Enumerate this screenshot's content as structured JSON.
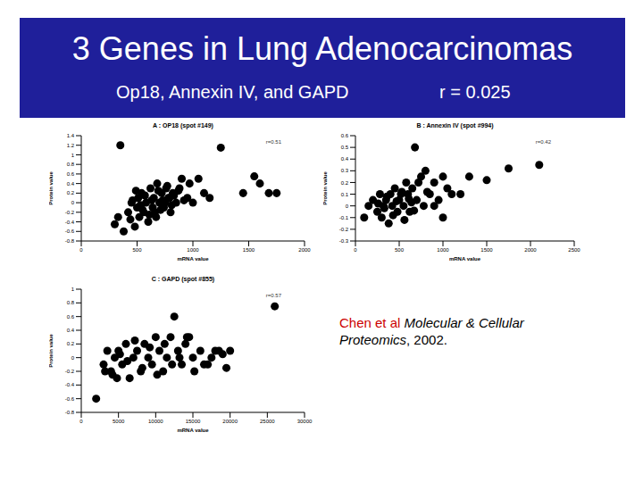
{
  "slide": {
    "title": "3 Genes in Lung Adenocarcinomas",
    "subtitle": "Op18, Annexin IV, and GAPD",
    "r_overall": "r = 0.025",
    "citation": {
      "author": "Chen et al",
      "journal": "Molecular & Cellular Proteomics",
      "rest": ", 2002."
    }
  },
  "chart_data": [
    {
      "type": "scatter",
      "title": "A : OP18 (spot #149)",
      "xlabel": "mRNA value",
      "ylabel": "Protein value",
      "annotation": "r=0.51",
      "color": "#000000",
      "marker": "circle",
      "grid": false,
      "xlim": [
        0,
        2000
      ],
      "xticks": [
        0,
        500,
        1000,
        1500,
        2000
      ],
      "ylim": [
        -0.8,
        1.4
      ],
      "yticks": [
        -0.8,
        -0.6,
        -0.4,
        -0.2,
        0,
        0.2,
        0.4,
        0.6,
        0.8,
        1,
        1.2,
        1.4
      ],
      "x": [
        350,
        330,
        420,
        450,
        480,
        500,
        510,
        520,
        540,
        560,
        580,
        600,
        620,
        640,
        650,
        660,
        680,
        700,
        720,
        740,
        760,
        780,
        800,
        820,
        850,
        880,
        900,
        950,
        1000,
        1050,
        1100,
        1150,
        1250,
        1450,
        1550,
        1600,
        1680,
        1750,
        380,
        460,
        530,
        570,
        610,
        690,
        710,
        730,
        770,
        810,
        830,
        870,
        920,
        970,
        300,
        440,
        490,
        550,
        630,
        670,
        750,
        790
      ],
      "values": [
        1.2,
        -0.3,
        -0.2,
        0.0,
        -0.5,
        -0.1,
        0.1,
        -0.3,
        0.2,
        -0.2,
        0.0,
        -0.4,
        0.3,
        -0.1,
        0.1,
        -0.2,
        0.4,
        0.0,
        0.2,
        -0.1,
        0.3,
        0.1,
        -0.2,
        0.2,
        0.0,
        0.3,
        0.5,
        0.1,
        0.0,
        0.5,
        0.2,
        0.1,
        1.15,
        0.2,
        0.55,
        0.4,
        0.2,
        0.2,
        -0.6,
        0.05,
        -0.05,
        0.15,
        -0.25,
        0.25,
        -0.15,
        0.05,
        0.35,
        -0.05,
        0.15,
        0.25,
        0.05,
        0.4,
        -0.45,
        -0.35,
        0.25,
        -0.15,
        0.05,
        -0.3,
        0.0,
        0.1
      ]
    },
    {
      "type": "scatter",
      "title": "B : Annexin IV (spot #994)",
      "xlabel": "mRNA value",
      "ylabel": "Protein value",
      "annotation": "r=0.42",
      "color": "#000000",
      "marker": "circle",
      "grid": false,
      "xlim": [
        0,
        2500
      ],
      "xticks": [
        0,
        500,
        1000,
        1500,
        2000,
        2500
      ],
      "ylim": [
        -0.3,
        0.6
      ],
      "yticks": [
        -0.3,
        -0.2,
        -0.1,
        0,
        0.1,
        0.2,
        0.3,
        0.4,
        0.5,
        0.6
      ],
      "x": [
        100,
        150,
        200,
        250,
        280,
        300,
        320,
        350,
        380,
        400,
        420,
        450,
        480,
        500,
        520,
        550,
        580,
        600,
        620,
        650,
        680,
        700,
        720,
        750,
        780,
        800,
        850,
        900,
        950,
        1000,
        1050,
        1100,
        1200,
        1300,
        1500,
        1750,
        2100,
        1000,
        900,
        820,
        260,
        330,
        360,
        430,
        470,
        530,
        560,
        610,
        640,
        670
      ],
      "values": [
        -0.1,
        0.0,
        0.05,
        -0.05,
        0.1,
        -0.1,
        0.0,
        0.05,
        -0.15,
        0.1,
        0.0,
        0.15,
        -0.05,
        0.05,
        0.1,
        0.0,
        0.2,
        0.1,
        -0.05,
        0.15,
        0.5,
        0.05,
        0.2,
        0.25,
        0.0,
        0.3,
        0.1,
        0.2,
        0.05,
        0.25,
        0.15,
        0.1,
        0.1,
        0.25,
        0.22,
        0.32,
        0.35,
        -0.1,
        0.0,
        0.12,
        0.02,
        -0.02,
        0.08,
        -0.08,
        0.04,
        0.12,
        -0.12,
        0.06,
        0.03,
        -0.04
      ]
    },
    {
      "type": "scatter",
      "title": "C : GAPD (spot #855)",
      "xlabel": "mRNA value",
      "ylabel": "Protein value",
      "annotation": "r=0.57",
      "color": "#000000",
      "marker": "circle",
      "grid": false,
      "xlim": [
        0,
        30000
      ],
      "xticks": [
        0,
        5000,
        10000,
        15000,
        20000,
        25000,
        30000
      ],
      "ylim": [
        -0.8,
        1
      ],
      "yticks": [
        -0.8,
        -0.6,
        -0.4,
        -0.2,
        0,
        0.2,
        0.4,
        0.6,
        0.8,
        1
      ],
      "x": [
        2000,
        3000,
        3500,
        4000,
        4500,
        5000,
        5500,
        6000,
        6500,
        7000,
        7500,
        8000,
        8500,
        9000,
        9500,
        10000,
        10500,
        11000,
        11500,
        12000,
        12500,
        13000,
        13500,
        14000,
        14500,
        15000,
        16000,
        17000,
        18000,
        19000,
        20000,
        26000,
        3200,
        4200,
        5200,
        6200,
        7200,
        8200,
        9200,
        10200,
        11200,
        12200,
        13200,
        14200,
        15200,
        16500,
        17500,
        18500,
        19500,
        4800
      ],
      "values": [
        -0.6,
        -0.1,
        0.1,
        -0.2,
        0.0,
        0.1,
        -0.1,
        0.2,
        -0.3,
        0.0,
        0.1,
        -0.2,
        0.2,
        0.0,
        -0.1,
        0.3,
        0.1,
        -0.2,
        0.0,
        0.3,
        0.6,
        0.1,
        -0.1,
        0.2,
        0.3,
        0.0,
        0.1,
        -0.1,
        0.1,
        0.05,
        0.1,
        0.75,
        -0.2,
        -0.25,
        0.05,
        -0.05,
        0.25,
        -0.15,
        0.15,
        -0.25,
        0.2,
        -0.1,
        0.0,
        0.3,
        -0.2,
        -0.1,
        0.0,
        0.1,
        -0.15,
        -0.3
      ]
    }
  ]
}
